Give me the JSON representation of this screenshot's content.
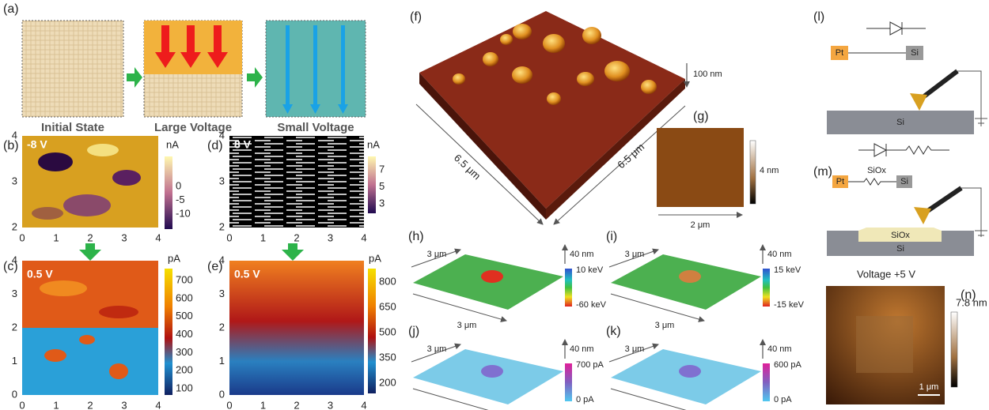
{
  "panels": {
    "a": {
      "label": "(a)",
      "steps": [
        "Initial State",
        "Large Voltage",
        "Small Voltage"
      ]
    },
    "b": {
      "label": "(b)",
      "voltage": "-8 V",
      "unit": "nA",
      "colorbar_ticks": [
        0,
        -5,
        -10
      ],
      "y_ticks": [
        4,
        3,
        2
      ],
      "x_ticks": [
        0,
        1,
        2,
        3,
        4
      ]
    },
    "c": {
      "label": "(c)",
      "voltage": "0.5 V",
      "unit": "pA",
      "colorbar_ticks": [
        700,
        600,
        500,
        400,
        300,
        200,
        100
      ],
      "y_ticks": [
        4,
        3,
        2,
        1,
        0
      ],
      "x_ticks": [
        0,
        1,
        2,
        3,
        4
      ]
    },
    "d": {
      "label": "(d)",
      "voltage": "8 V",
      "unit": "nA",
      "colorbar_ticks": [
        7,
        5,
        3
      ],
      "y_ticks": [
        4,
        3,
        2
      ],
      "x_ticks": [
        0,
        1,
        2,
        3,
        4
      ]
    },
    "e": {
      "label": "(e)",
      "voltage": "0.5 V",
      "unit": "pA",
      "colorbar_ticks": [
        800,
        650,
        500,
        350,
        200
      ],
      "y_ticks": [
        4,
        3,
        2,
        1,
        0
      ],
      "x_ticks": [
        0,
        1,
        2,
        3,
        4
      ]
    },
    "f": {
      "label": "(f)",
      "height": "100 nm",
      "sides": [
        "6.5 μm",
        "6.5 μm"
      ]
    },
    "g": {
      "label": "(g)",
      "scale": "4 nm",
      "width": "2 μm"
    },
    "h": {
      "label": "(h)",
      "sides": [
        "3 μm",
        "3 μm"
      ],
      "height": "40 nm",
      "scale": [
        "10 keV",
        "-60 keV"
      ]
    },
    "i": {
      "label": "(i)",
      "sides": [
        "3 μm",
        "3 μm"
      ],
      "height": "40 nm",
      "scale": [
        "15 keV",
        "-15 keV"
      ]
    },
    "j": {
      "label": "(j)",
      "sides": [
        "3 μm",
        "3 μm"
      ],
      "height": "40 nm",
      "scale": [
        "700 pA",
        "0 pA"
      ]
    },
    "k": {
      "label": "(k)",
      "sides": [
        "3 μm",
        "3 μm"
      ],
      "height": "40 nm",
      "scale": [
        "600 pA",
        "0 pA"
      ]
    },
    "l": {
      "label": "(l)",
      "electrode": "Pt",
      "contact": "Si",
      "substrate": "Si"
    },
    "m": {
      "label": "(m)",
      "electrode": "Pt",
      "resistor": "SiOx",
      "contact": "Si",
      "layer": "SiOx",
      "substrate": "Si"
    },
    "n": {
      "label": "(n)",
      "title": "Voltage +5 V",
      "scale": "7.8 nm",
      "bar": "1 μm"
    }
  }
}
